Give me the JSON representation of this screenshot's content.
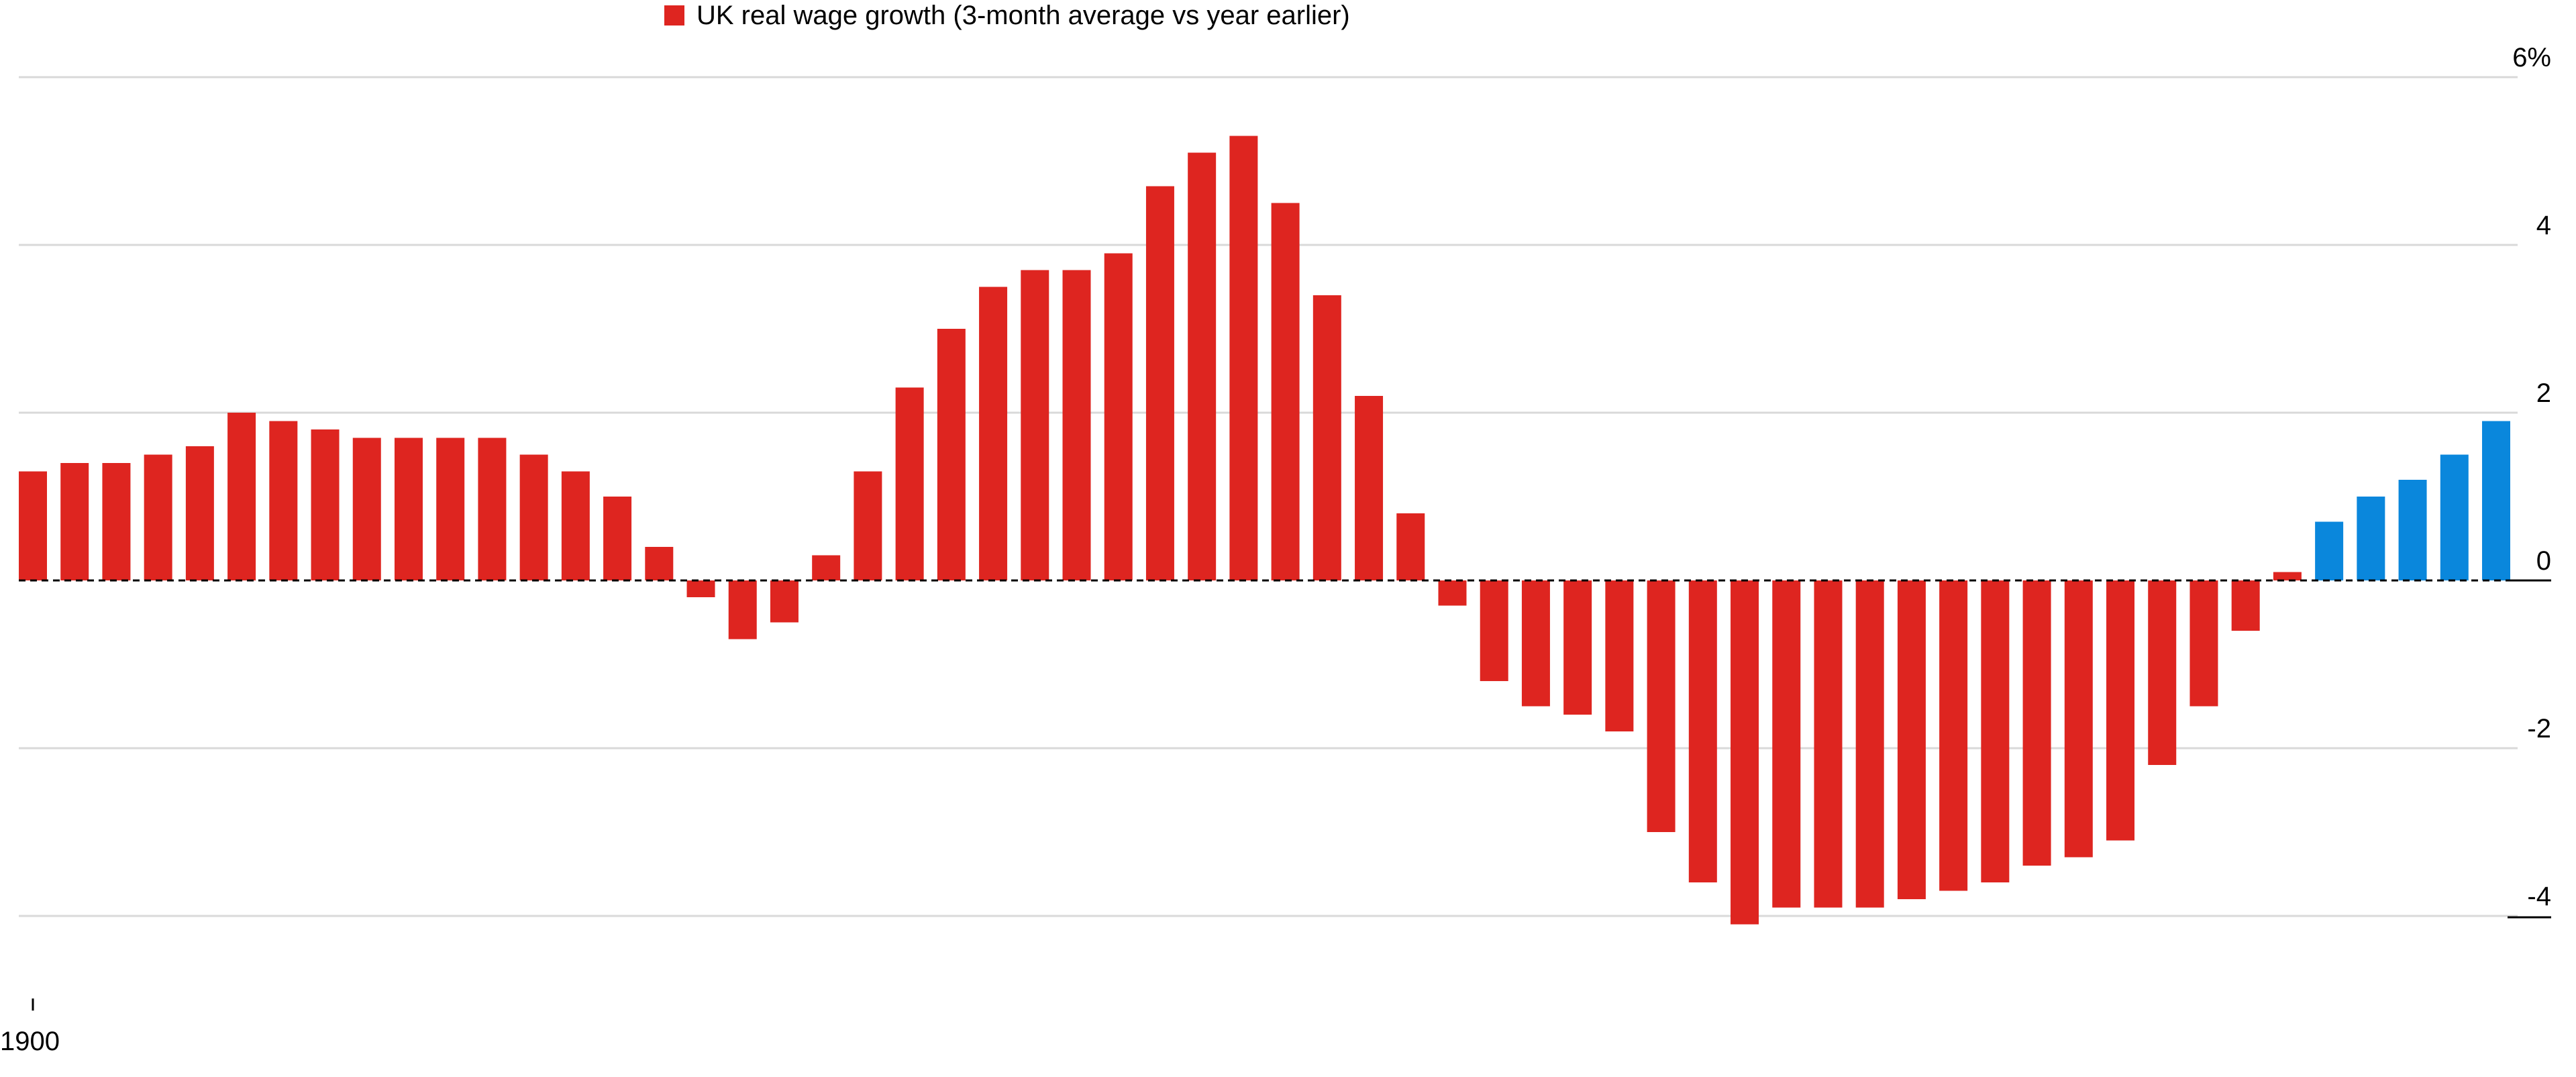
{
  "chart_data": {
    "type": "bar",
    "title": "",
    "xlabel": "",
    "ylabel": "",
    "legend": [
      {
        "label": "UK real wage growth (3-month average vs year earlier)",
        "color": "#de2520"
      }
    ],
    "ylim": [
      -4,
      6
    ],
    "y_ticks": [
      {
        "value": 6,
        "label": "6%"
      },
      {
        "value": 4,
        "label": "4"
      },
      {
        "value": 2,
        "label": "2"
      },
      {
        "value": 0,
        "label": "0"
      },
      {
        "value": -2,
        "label": "-2"
      },
      {
        "value": -4,
        "label": "-4"
      }
    ],
    "x_tick_label": "1900",
    "grid": true,
    "zero_line": "dashed",
    "legend_position": "top",
    "colors": {
      "negative_period": "#de2520",
      "highlight": "#0a87dc",
      "grid": "#d9d9d9",
      "axis": "#000000"
    },
    "series": [
      {
        "values": [
          1.3,
          1.4,
          1.4,
          1.5,
          1.6,
          2.0,
          1.9,
          1.8,
          1.7,
          1.7,
          1.7,
          1.7,
          1.5,
          1.3,
          1.0,
          0.4,
          -0.2,
          -0.7,
          -0.5,
          0.3,
          1.3,
          2.3,
          3.0,
          3.5,
          3.7,
          3.7,
          3.9,
          4.7,
          5.1,
          5.3,
          4.5,
          3.4,
          2.2,
          0.8,
          -0.3,
          -1.2,
          -1.5,
          -1.6,
          -1.8,
          -3.0,
          -3.6,
          -4.1,
          -3.9,
          -3.9,
          -3.9,
          -3.8,
          -3.7,
          -3.6,
          -3.4,
          -3.3,
          -3.1,
          -2.2,
          -1.5,
          -0.6,
          0.1,
          0.7,
          1.0,
          1.2,
          1.5,
          1.9
        ],
        "colors": [
          "#de2520",
          "#de2520",
          "#de2520",
          "#de2520",
          "#de2520",
          "#de2520",
          "#de2520",
          "#de2520",
          "#de2520",
          "#de2520",
          "#de2520",
          "#de2520",
          "#de2520",
          "#de2520",
          "#de2520",
          "#de2520",
          "#de2520",
          "#de2520",
          "#de2520",
          "#de2520",
          "#de2520",
          "#de2520",
          "#de2520",
          "#de2520",
          "#de2520",
          "#de2520",
          "#de2520",
          "#de2520",
          "#de2520",
          "#de2520",
          "#de2520",
          "#de2520",
          "#de2520",
          "#de2520",
          "#de2520",
          "#de2520",
          "#de2520",
          "#de2520",
          "#de2520",
          "#de2520",
          "#de2520",
          "#de2520",
          "#de2520",
          "#de2520",
          "#de2520",
          "#de2520",
          "#de2520",
          "#de2520",
          "#de2520",
          "#de2520",
          "#de2520",
          "#de2520",
          "#de2520",
          "#de2520",
          "#de2520",
          "#0a87dc",
          "#0a87dc",
          "#0a87dc",
          "#0a87dc",
          "#0a87dc"
        ]
      }
    ]
  }
}
